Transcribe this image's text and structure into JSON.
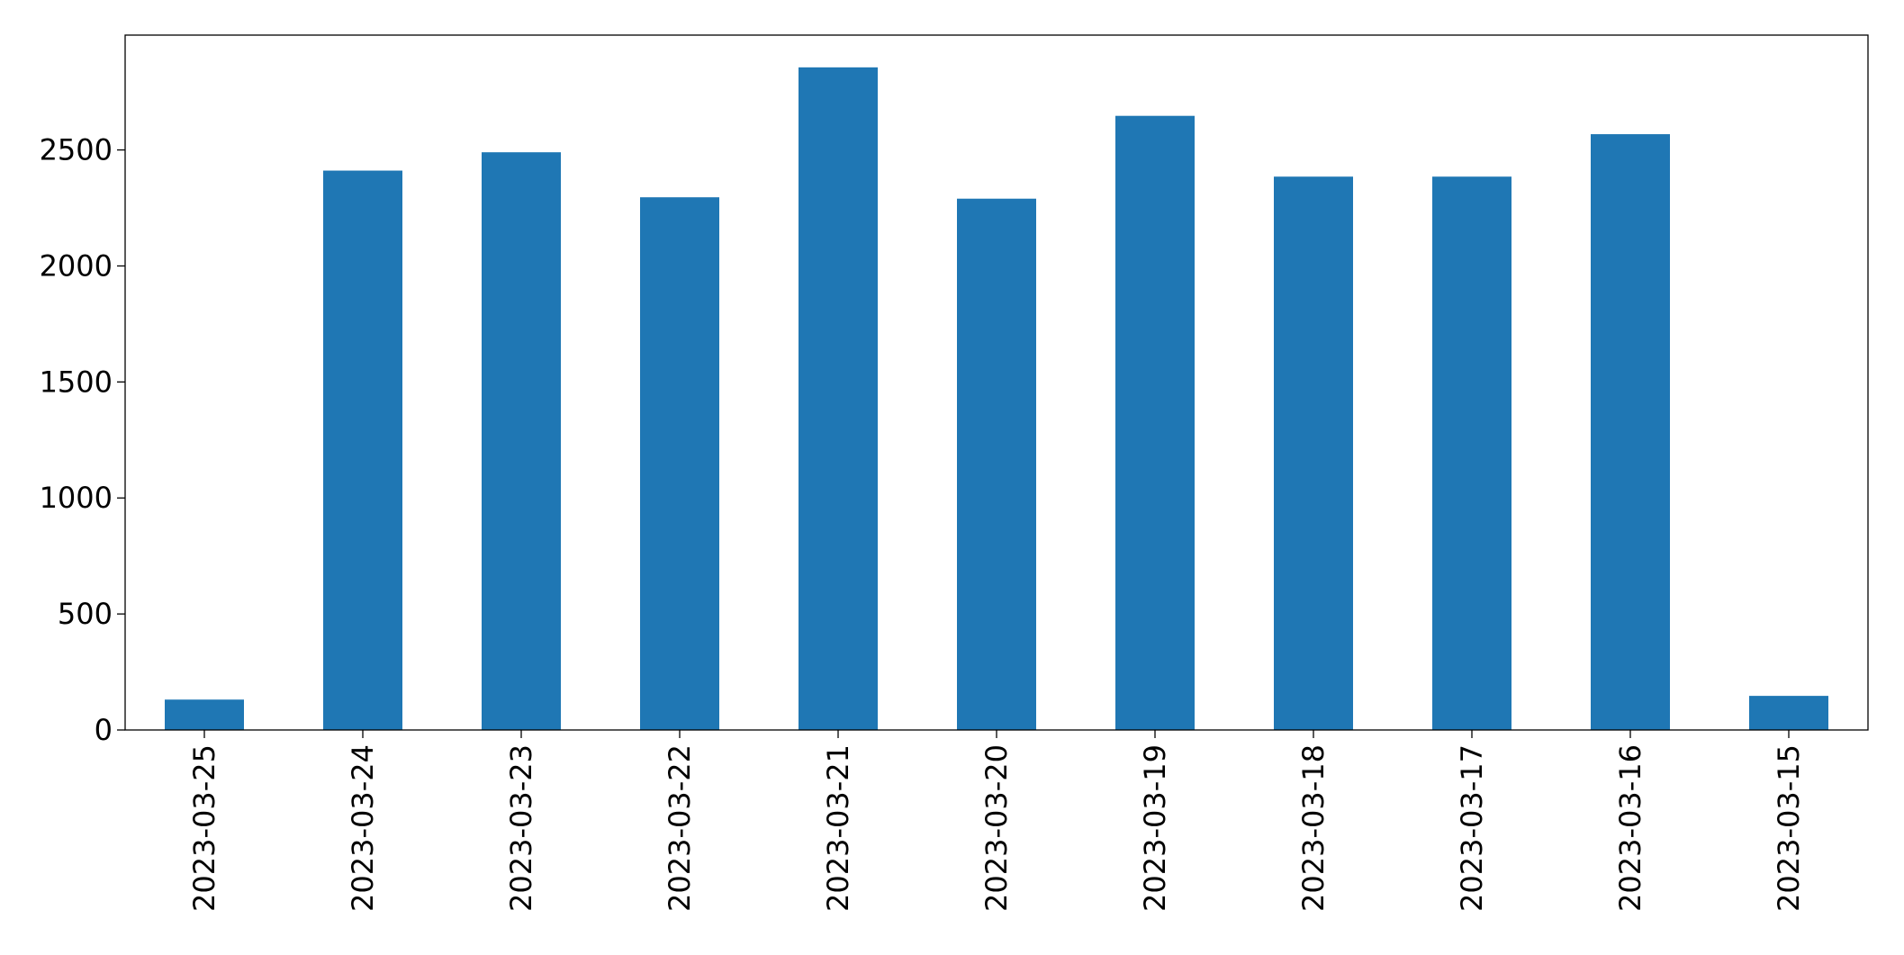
{
  "chart_data": {
    "type": "bar",
    "categories": [
      "2023-03-25",
      "2023-03-24",
      "2023-03-23",
      "2023-03-22",
      "2023-03-21",
      "2023-03-20",
      "2023-03-19",
      "2023-03-18",
      "2023-03-17",
      "2023-03-16",
      "2023-03-15"
    ],
    "values": [
      131,
      2411,
      2490,
      2296,
      2856,
      2290,
      2647,
      2385,
      2385,
      2568,
      147
    ],
    "color": "#1f77b4",
    "ylim": [
      0,
      2995
    ],
    "yticks": [
      0,
      500,
      1000,
      1500,
      2000,
      2500
    ],
    "grid": false
  }
}
